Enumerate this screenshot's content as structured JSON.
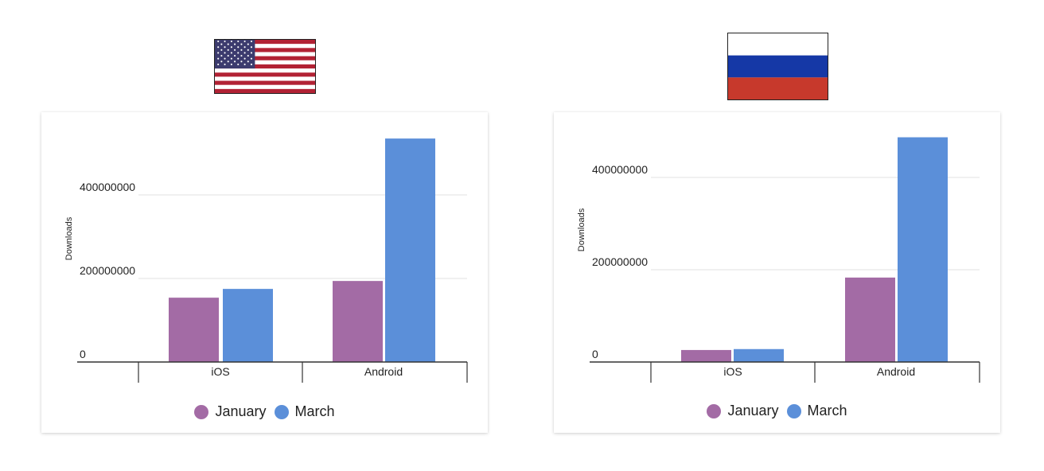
{
  "colors": {
    "january": "#a36ba5",
    "march": "#5b8fd9",
    "grid": "#e0e0e0",
    "axis": "#333333"
  },
  "flags": [
    {
      "country-icon": "us-flag-icon"
    },
    {
      "country-icon": "russia-flag-icon"
    }
  ],
  "chart_data": [
    {
      "type": "bar",
      "categories": [
        "iOS",
        "Android"
      ],
      "series": [
        {
          "name": "January",
          "values": [
            154000000,
            194000000
          ]
        },
        {
          "name": "March",
          "values": [
            175000000,
            535000000
          ]
        }
      ],
      "ylabel": "Downloads",
      "yticks": [
        "0",
        "200000000",
        "400000000"
      ],
      "ylim": [
        0,
        540000000
      ],
      "grid": true,
      "legend": "bottom"
    },
    {
      "type": "bar",
      "categories": [
        "iOS",
        "Android"
      ],
      "series": [
        {
          "name": "January",
          "values": [
            26000000,
            183000000
          ]
        },
        {
          "name": "March",
          "values": [
            28000000,
            487000000
          ]
        }
      ],
      "ylabel": "Downloads",
      "yticks": [
        "0",
        "200000000",
        "400000000"
      ],
      "ylim": [
        0,
        490000000
      ],
      "grid": true,
      "legend": "bottom"
    }
  ]
}
